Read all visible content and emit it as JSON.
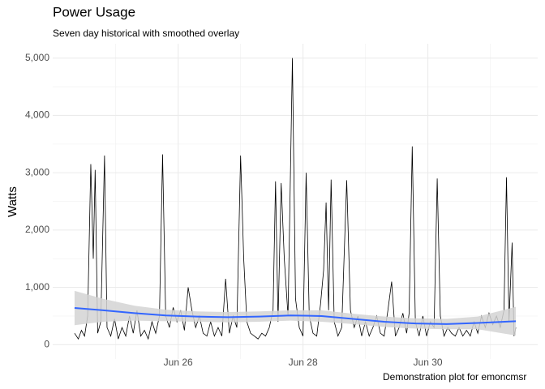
{
  "chart_data": {
    "type": "line",
    "title": "Power Usage",
    "subtitle": "Seven day historical with smoothed overlay",
    "y_label": "Watts",
    "caption": "Demonstration plot for emoncmsr",
    "xlim": [
      23.99,
      31.76
    ],
    "xticks": [
      {
        "value": 26,
        "label": "Jun 26"
      },
      {
        "value": 28,
        "label": "Jun 28"
      },
      {
        "value": 30,
        "label": "Jun 30"
      }
    ],
    "xminor": [
      25,
      27,
      29,
      31
    ],
    "ylim": [
      -250,
      5250
    ],
    "yticks": [
      0,
      {
        "value": 1000,
        "label": "1,000"
      },
      {
        "value": 2000,
        "label": "2,000"
      },
      {
        "value": 3000,
        "label": "3,000"
      },
      {
        "value": 4000,
        "label": "4,000"
      },
      {
        "value": 5000,
        "label": "5,000"
      }
    ],
    "yminor": [
      500,
      1500,
      2500,
      3500,
      4500
    ],
    "grid": true,
    "x": [
      24.34,
      24.4,
      24.45,
      24.5,
      24.55,
      24.6,
      24.64,
      24.67,
      24.71,
      24.76,
      24.82,
      24.86,
      24.92,
      24.98,
      25.04,
      25.1,
      25.16,
      25.22,
      25.28,
      25.34,
      25.4,
      25.46,
      25.52,
      25.58,
      25.64,
      25.7,
      25.75,
      25.8,
      25.86,
      25.92,
      25.98,
      26.04,
      26.1,
      26.16,
      26.22,
      26.28,
      26.34,
      26.4,
      26.46,
      26.52,
      26.58,
      26.64,
      26.7,
      26.76,
      26.82,
      26.88,
      26.94,
      27.0,
      27.05,
      27.1,
      27.16,
      27.22,
      27.28,
      27.34,
      27.4,
      27.46,
      27.52,
      27.56,
      27.6,
      27.65,
      27.7,
      27.76,
      27.83,
      27.88,
      27.94,
      28.0,
      28.05,
      28.1,
      28.16,
      28.22,
      28.28,
      28.33,
      28.37,
      28.41,
      28.45,
      28.5,
      28.56,
      28.62,
      28.7,
      28.76,
      28.82,
      28.88,
      28.94,
      29.0,
      29.06,
      29.12,
      29.18,
      29.24,
      29.3,
      29.36,
      29.42,
      29.48,
      29.54,
      29.6,
      29.66,
      29.7,
      29.75,
      29.8,
      29.86,
      29.92,
      29.98,
      30.04,
      30.1,
      30.15,
      30.2,
      30.26,
      30.32,
      30.38,
      30.44,
      30.5,
      30.56,
      30.62,
      30.68,
      30.74,
      30.8,
      30.86,
      30.92,
      30.98,
      31.04,
      31.1,
      31.16,
      31.22,
      31.26,
      31.3,
      31.35,
      31.38,
      31.41
    ],
    "series": [
      {
        "color": "#000000",
        "values": [
          200,
          100,
          250,
          150,
          500,
          3150,
          1500,
          3050,
          200,
          400,
          3300,
          300,
          150,
          450,
          100,
          300,
          150,
          500,
          200,
          600,
          150,
          250,
          100,
          400,
          200,
          500,
          3320,
          500,
          300,
          650,
          400,
          600,
          250,
          1000,
          600,
          300,
          500,
          200,
          150,
          400,
          150,
          300,
          150,
          1150,
          200,
          500,
          300,
          3300,
          1500,
          400,
          200,
          150,
          100,
          200,
          150,
          300,
          600,
          2850,
          400,
          2820,
          1500,
          500,
          5000,
          800,
          300,
          150,
          3000,
          500,
          200,
          150,
          700,
          1300,
          2480,
          600,
          2880,
          400,
          150,
          300,
          2870,
          600,
          300,
          500,
          150,
          400,
          150,
          300,
          500,
          200,
          150,
          600,
          1100,
          150,
          300,
          550,
          200,
          550,
          3460,
          400,
          150,
          500,
          150,
          400,
          300,
          2900,
          500,
          150,
          300,
          200,
          150,
          300,
          150,
          250,
          150,
          400,
          200,
          500,
          300,
          550,
          350,
          500,
          300,
          600,
          2920,
          400,
          1780,
          150,
          300
        ]
      }
    ],
    "smooth": {
      "color": "#3366ff",
      "fill": "#d3d3d3",
      "x": [
        24.34,
        24.8,
        25.3,
        25.8,
        26.3,
        26.8,
        27.3,
        27.8,
        28.3,
        28.8,
        29.3,
        29.8,
        30.3,
        30.8,
        31.41
      ],
      "values": [
        640,
        600,
        550,
        510,
        490,
        480,
        490,
        510,
        500,
        450,
        400,
        370,
        360,
        380,
        410
      ],
      "lower": [
        340,
        400,
        420,
        410,
        400,
        390,
        400,
        420,
        400,
        360,
        310,
        280,
        270,
        270,
        160
      ],
      "upper": [
        940,
        800,
        680,
        610,
        580,
        570,
        580,
        600,
        600,
        540,
        490,
        460,
        450,
        490,
        660
      ]
    }
  }
}
